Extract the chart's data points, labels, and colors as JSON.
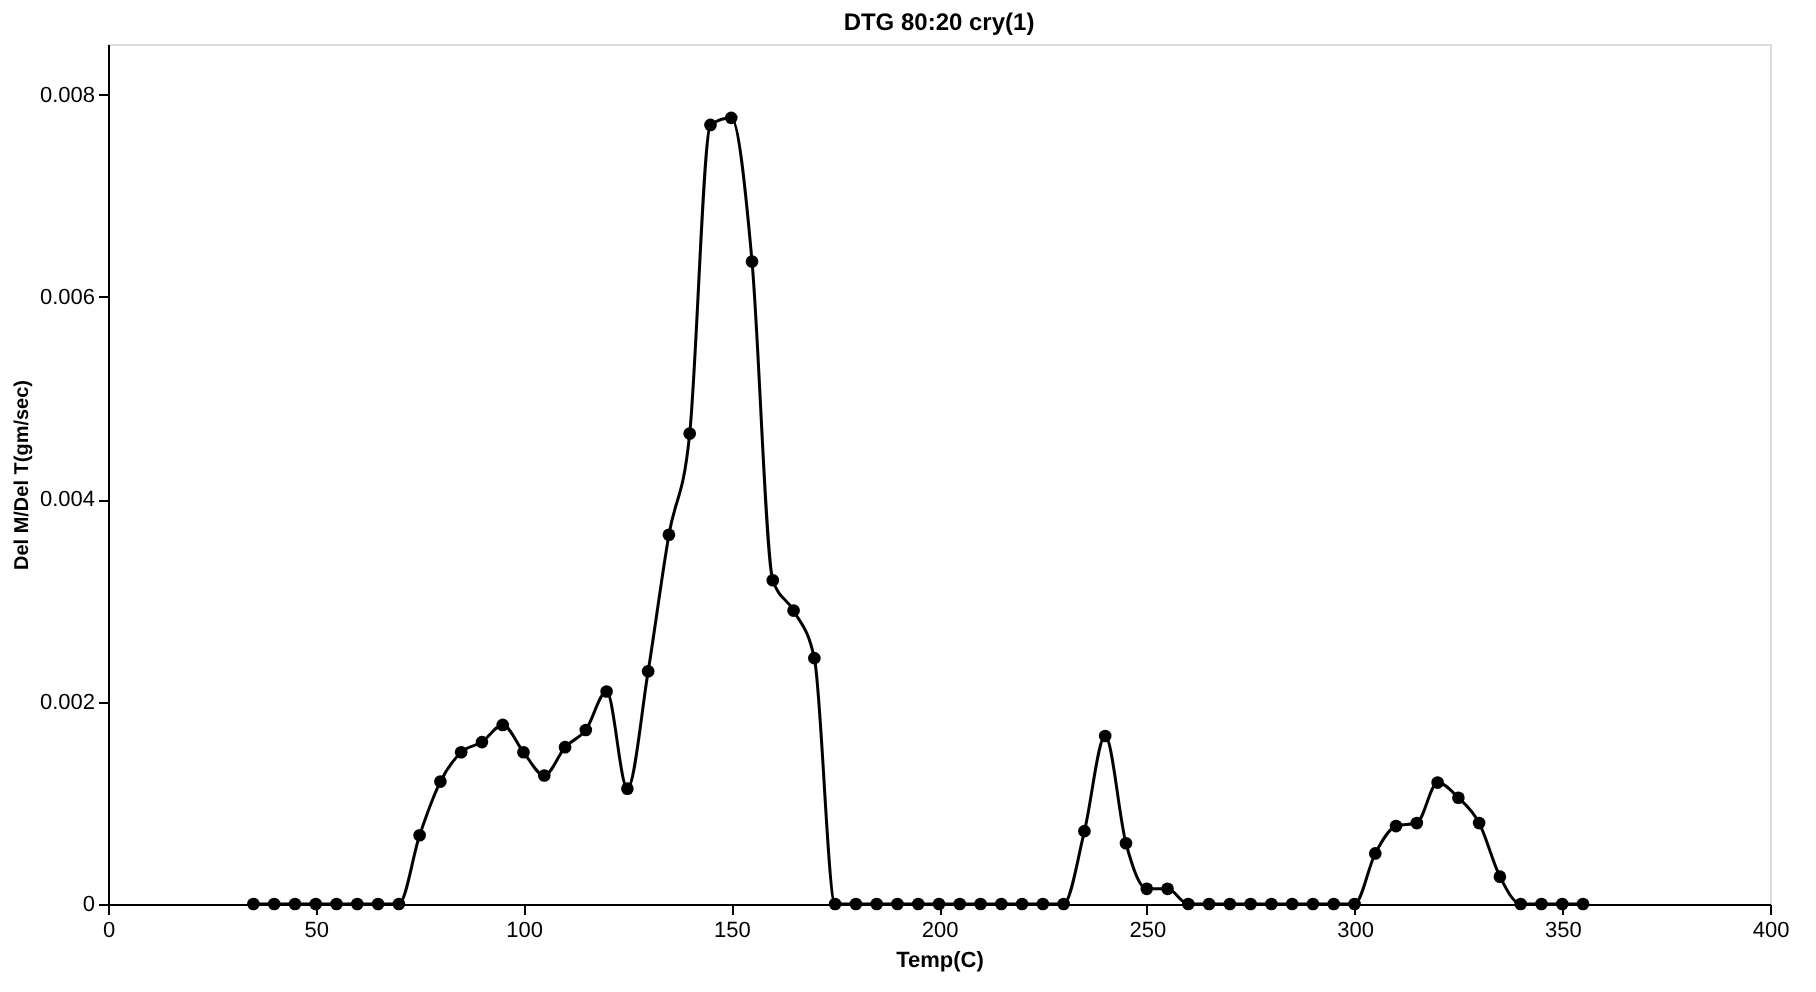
{
  "chart_data": {
    "type": "line",
    "title": "DTG 80:20 cry(1)",
    "xlabel": "Temp(C)",
    "ylabel": "Del M/Del T(gm/sec)",
    "x": [
      35,
      40,
      45,
      50,
      55,
      60,
      65,
      70,
      75,
      80,
      85,
      90,
      95,
      100,
      105,
      110,
      115,
      120,
      125,
      130,
      135,
      140,
      145,
      150,
      155,
      160,
      165,
      170,
      175,
      180,
      185,
      190,
      195,
      200,
      205,
      210,
      215,
      220,
      225,
      230,
      235,
      240,
      245,
      250,
      255,
      260,
      265,
      270,
      275,
      280,
      285,
      290,
      295,
      300,
      305,
      310,
      315,
      320,
      325,
      330,
      335,
      340,
      345,
      350,
      355
    ],
    "series": [
      {
        "color": "#000000",
        "values": [
          0,
          0,
          0,
          0,
          0,
          0,
          0,
          0,
          0.00068,
          0.00121,
          0.0015,
          0.0016,
          0.00177,
          0.0015,
          0.00127,
          0.00155,
          0.00172,
          0.0021,
          0.00114,
          0.0023,
          0.00365,
          0.00465,
          0.0077,
          0.00777,
          0.00635,
          0.0032,
          0.0029,
          0.00243,
          0,
          0,
          0,
          0,
          0,
          0,
          0,
          0,
          0,
          0,
          0,
          0,
          0.00072,
          0.00166,
          0.0006,
          0.00015,
          0.00015,
          0,
          0,
          0,
          0,
          0,
          0,
          0,
          0,
          0,
          0.0005,
          0.00077,
          0.0008,
          0.0012,
          0.00105,
          0.0008,
          0.00027,
          0,
          0,
          0,
          0
        ]
      }
    ],
    "xlim": [
      0,
      400
    ],
    "xticks": [
      0,
      50,
      100,
      150,
      200,
      250,
      300,
      350,
      400
    ],
    "ylim": [
      0,
      0.0085
    ],
    "yticks": [
      0,
      0.002,
      0.004,
      0.006,
      0.008
    ],
    "grid": false,
    "marker": "circle",
    "line_style": "solid"
  }
}
